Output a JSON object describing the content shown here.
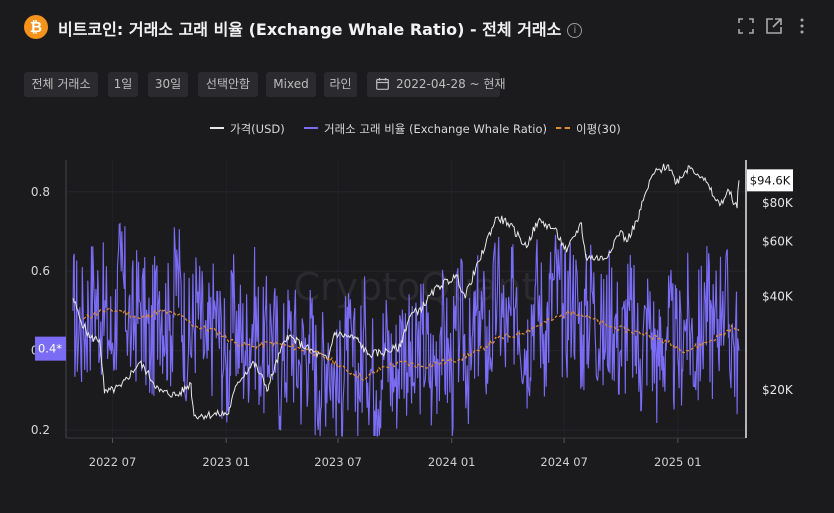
{
  "header": {
    "title": "비트코인: 거래소 고래 비율 (Exchange Whale Ratio) - 전체 거래소",
    "info_glyph": "i",
    "coin_glyph": "₿"
  },
  "toolbar": {
    "exchange": "전체 거래소",
    "interval": "1일",
    "ma_period": "30일",
    "option": "선택안함",
    "scale": "Mixed",
    "chart_style": "라인",
    "date_range": "2022-04-28 ~ 현재"
  },
  "colors": {
    "price": "#e8e8e8",
    "ratio": "#7b6cf6",
    "ma": "#e0902a",
    "background": "#1b1b1e"
  },
  "watermark": "CryptoQuant",
  "chart_data": {
    "type": "line",
    "title": "비트코인: 거래소 고래 비율 (Exchange Whale Ratio) - 전체 거래소",
    "x_range": [
      "2022-04-28",
      "2025-04-10"
    ],
    "x_ticks": [
      "2022 07",
      "2023 01",
      "2023 07",
      "2024 01",
      "2024 07",
      "2025 01"
    ],
    "y_left": {
      "label": "",
      "range": [
        0.18,
        0.88
      ],
      "ticks": [
        0.2,
        0.4,
        0.6,
        0.8
      ]
    },
    "y_right": {
      "label": "",
      "scale": "log",
      "range": [
        14000,
        110000
      ],
      "ticks": [
        "$20K",
        "$40K",
        "$60K",
        "$80K"
      ]
    },
    "current_ratio_label": "0.4*",
    "current_price_label": "$94.6K",
    "legend_placement": "top-center",
    "series": [
      {
        "name": "가격(USD)",
        "axis": "right",
        "style": "line",
        "points": [
          [
            "2022-04-28",
            39500
          ],
          [
            "2022-05-08",
            34500
          ],
          [
            "2022-05-25",
            29500
          ],
          [
            "2022-06-10",
            29000
          ],
          [
            "2022-06-18",
            19500
          ],
          [
            "2022-07-15",
            20500
          ],
          [
            "2022-08-14",
            24500
          ],
          [
            "2022-09-15",
            19800
          ],
          [
            "2022-10-15",
            19200
          ],
          [
            "2022-11-05",
            21000
          ],
          [
            "2022-11-10",
            16500
          ],
          [
            "2022-12-20",
            16700
          ],
          [
            "2023-01-05",
            16800
          ],
          [
            "2023-01-20",
            21200
          ],
          [
            "2023-02-15",
            24500
          ],
          [
            "2023-03-10",
            20000
          ],
          [
            "2023-04-10",
            30000
          ],
          [
            "2023-05-15",
            27000
          ],
          [
            "2023-06-15",
            25000
          ],
          [
            "2023-06-25",
            30500
          ],
          [
            "2023-08-01",
            29200
          ],
          [
            "2023-08-18",
            26000
          ],
          [
            "2023-09-15",
            26500
          ],
          [
            "2023-10-10",
            27500
          ],
          [
            "2023-10-25",
            34500
          ],
          [
            "2023-11-15",
            37000
          ],
          [
            "2023-12-10",
            43000
          ],
          [
            "2024-01-10",
            46500
          ],
          [
            "2024-01-23",
            39500
          ],
          [
            "2024-02-15",
            52000
          ],
          [
            "2024-03-14",
            72000
          ],
          [
            "2024-04-01",
            69000
          ],
          [
            "2024-05-01",
            57500
          ],
          [
            "2024-05-20",
            70000
          ],
          [
            "2024-06-15",
            66000
          ],
          [
            "2024-07-05",
            55500
          ],
          [
            "2024-07-29",
            69000
          ],
          [
            "2024-08-05",
            53500
          ],
          [
            "2024-09-06",
            53000
          ],
          [
            "2024-09-30",
            65000
          ],
          [
            "2024-10-10",
            60000
          ],
          [
            "2024-10-30",
            72000
          ],
          [
            "2024-11-12",
            88000
          ],
          [
            "2024-11-22",
            99000
          ],
          [
            "2024-12-17",
            106000
          ],
          [
            "2024-12-30",
            93000
          ],
          [
            "2025-01-20",
            105000
          ],
          [
            "2025-02-10",
            97000
          ],
          [
            "2025-02-28",
            84000
          ],
          [
            "2025-03-10",
            78500
          ],
          [
            "2025-03-25",
            87500
          ],
          [
            "2025-04-07",
            77000
          ],
          [
            "2025-04-10",
            94600
          ]
        ]
      },
      {
        "name": "거래소 고래 비율 (Exchange Whale Ratio)",
        "axis": "left",
        "style": "line",
        "points": [
          [
            "2022-04-28",
            0.5
          ],
          [
            "2022-05-15",
            0.45
          ],
          [
            "2022-06-01",
            0.55
          ],
          [
            "2022-06-15",
            0.5
          ],
          [
            "2022-07-01",
            0.42
          ],
          [
            "2022-07-15",
            0.6
          ],
          [
            "2022-08-01",
            0.45
          ],
          [
            "2022-08-15",
            0.52
          ],
          [
            "2022-09-01",
            0.4
          ],
          [
            "2022-09-15",
            0.55
          ],
          [
            "2022-10-01",
            0.45
          ],
          [
            "2022-10-15",
            0.6
          ],
          [
            "2022-11-01",
            0.4
          ],
          [
            "2022-11-15",
            0.52
          ],
          [
            "2022-12-01",
            0.38
          ],
          [
            "2022-12-15",
            0.5
          ],
          [
            "2023-01-01",
            0.35
          ],
          [
            "2023-01-15",
            0.48
          ],
          [
            "2023-02-01",
            0.4
          ],
          [
            "2023-02-15",
            0.5
          ],
          [
            "2023-03-01",
            0.38
          ],
          [
            "2023-03-15",
            0.46
          ],
          [
            "2023-04-01",
            0.34
          ],
          [
            "2023-04-15",
            0.45
          ],
          [
            "2023-05-01",
            0.36
          ],
          [
            "2023-05-15",
            0.44
          ],
          [
            "2023-06-01",
            0.3
          ],
          [
            "2023-06-15",
            0.42
          ],
          [
            "2023-07-01",
            0.28
          ],
          [
            "2023-07-15",
            0.4
          ],
          [
            "2023-08-01",
            0.32
          ],
          [
            "2023-08-15",
            0.43
          ],
          [
            "2023-09-01",
            0.3
          ],
          [
            "2023-09-15",
            0.42
          ],
          [
            "2023-10-01",
            0.33
          ],
          [
            "2023-10-15",
            0.45
          ],
          [
            "2023-11-01",
            0.32
          ],
          [
            "2023-11-15",
            0.44
          ],
          [
            "2023-12-01",
            0.34
          ],
          [
            "2023-12-15",
            0.46
          ],
          [
            "2024-01-01",
            0.33
          ],
          [
            "2024-01-15",
            0.48
          ],
          [
            "2024-02-01",
            0.35
          ],
          [
            "2024-02-15",
            0.5
          ],
          [
            "2024-03-01",
            0.4
          ],
          [
            "2024-03-15",
            0.55
          ],
          [
            "2024-04-01",
            0.42
          ],
          [
            "2024-04-15",
            0.56
          ],
          [
            "2024-05-01",
            0.4
          ],
          [
            "2024-05-15",
            0.56
          ],
          [
            "2024-06-01",
            0.45
          ],
          [
            "2024-06-15",
            0.58
          ],
          [
            "2024-07-01",
            0.48
          ],
          [
            "2024-07-15",
            0.56
          ],
          [
            "2024-08-01",
            0.44
          ],
          [
            "2024-08-15",
            0.55
          ],
          [
            "2024-09-01",
            0.42
          ],
          [
            "2024-09-15",
            0.52
          ],
          [
            "2024-10-01",
            0.4
          ],
          [
            "2024-10-15",
            0.5
          ],
          [
            "2024-11-01",
            0.38
          ],
          [
            "2024-11-15",
            0.48
          ],
          [
            "2024-12-01",
            0.36
          ],
          [
            "2024-12-15",
            0.46
          ],
          [
            "2025-01-01",
            0.38
          ],
          [
            "2025-01-15",
            0.48
          ],
          [
            "2025-02-01",
            0.4
          ],
          [
            "2025-02-15",
            0.52
          ],
          [
            "2025-03-01",
            0.44
          ],
          [
            "2025-03-15",
            0.55
          ],
          [
            "2025-04-01",
            0.42
          ],
          [
            "2025-04-10",
            0.4
          ]
        ]
      },
      {
        "name": "이평(30)",
        "axis": "left",
        "style": "dashed",
        "points": [
          [
            "2022-05-15",
            0.48
          ],
          [
            "2022-06-15",
            0.5
          ],
          [
            "2022-07-15",
            0.5
          ],
          [
            "2022-08-15",
            0.48
          ],
          [
            "2022-09-15",
            0.5
          ],
          [
            "2022-10-15",
            0.49
          ],
          [
            "2022-11-15",
            0.46
          ],
          [
            "2022-12-15",
            0.45
          ],
          [
            "2023-01-15",
            0.42
          ],
          [
            "2023-02-15",
            0.41
          ],
          [
            "2023-03-15",
            0.42
          ],
          [
            "2023-04-15",
            0.41
          ],
          [
            "2023-05-15",
            0.4
          ],
          [
            "2023-06-15",
            0.38
          ],
          [
            "2023-07-15",
            0.35
          ],
          [
            "2023-08-15",
            0.33
          ],
          [
            "2023-09-15",
            0.36
          ],
          [
            "2023-10-15",
            0.37
          ],
          [
            "2023-11-15",
            0.36
          ],
          [
            "2023-12-15",
            0.37
          ],
          [
            "2024-01-15",
            0.38
          ],
          [
            "2024-02-15",
            0.4
          ],
          [
            "2024-03-15",
            0.43
          ],
          [
            "2024-04-15",
            0.44
          ],
          [
            "2024-05-15",
            0.46
          ],
          [
            "2024-06-15",
            0.48
          ],
          [
            "2024-07-15",
            0.5
          ],
          [
            "2024-08-15",
            0.48
          ],
          [
            "2024-09-15",
            0.46
          ],
          [
            "2024-10-15",
            0.45
          ],
          [
            "2024-11-15",
            0.44
          ],
          [
            "2024-12-15",
            0.42
          ],
          [
            "2025-01-15",
            0.4
          ],
          [
            "2025-02-15",
            0.42
          ],
          [
            "2025-03-15",
            0.44
          ],
          [
            "2025-04-01",
            0.46
          ],
          [
            "2025-04-10",
            0.45
          ]
        ]
      }
    ]
  }
}
